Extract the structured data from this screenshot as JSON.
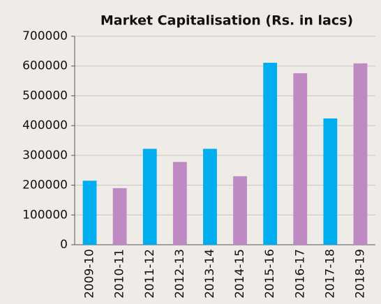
{
  "chart_data": {
    "type": "bar",
    "title": "Market Capitalisation (Rs. in lacs)",
    "categories": [
      "2009-10",
      "2010-11",
      "2011-12",
      "2012-13",
      "2013-14",
      "2014-15",
      "2015-16",
      "2016-17",
      "2017-18",
      "2018-19"
    ],
    "values": [
      215000,
      190000,
      322000,
      278000,
      322000,
      230000,
      611000,
      576000,
      424000,
      609000
    ],
    "colors": [
      "#00aeef",
      "#bf8ac4",
      "#00aeef",
      "#bf8ac4",
      "#00aeef",
      "#bf8ac4",
      "#00aeef",
      "#bf8ac4",
      "#00aeef",
      "#bf8ac4"
    ],
    "ylim": [
      0,
      700000
    ],
    "yticks": [
      0,
      100000,
      200000,
      300000,
      400000,
      500000,
      600000,
      700000
    ],
    "grid": true
  }
}
